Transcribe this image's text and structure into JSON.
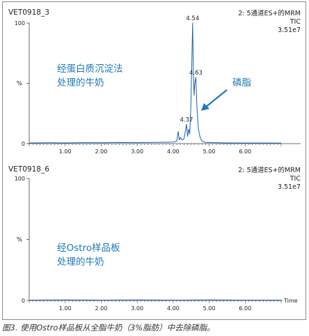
{
  "chart_data": [
    {
      "type": "line",
      "sample_id": "VET0918_3",
      "header_lines": [
        "2: 5通道ES+的MRM",
        "TIC",
        "3.51e7"
      ],
      "ylabel": "%",
      "ylim": [
        0,
        100
      ],
      "y_ticks": [
        0,
        100
      ],
      "xlim": [
        0.0,
        7.0
      ],
      "x_ticks": [
        "1.00",
        "2.00",
        "3.00",
        "4.00",
        "5.00",
        "6.00"
      ],
      "annotation_text": [
        "经蛋白质沉淀法",
        "处理的牛奶"
      ],
      "peak_callout": "磷脂",
      "peak_labels": [
        {
          "text": "4.54",
          "x": 4.54,
          "y": 100
        },
        {
          "text": "4.63",
          "x": 4.63,
          "y": 55
        },
        {
          "text": "4.37",
          "x": 4.37,
          "y": 16
        }
      ],
      "series": [
        {
          "color": "#1a5fb4",
          "x": [
            0.0,
            0.5,
            1.0,
            1.5,
            2.0,
            2.5,
            3.0,
            3.5,
            4.0,
            4.1,
            4.14,
            4.17,
            4.2,
            4.25,
            4.3,
            4.33,
            4.37,
            4.4,
            4.43,
            4.46,
            4.49,
            4.52,
            4.54,
            4.56,
            4.58,
            4.6,
            4.63,
            4.66,
            4.7,
            4.75,
            4.8,
            4.9,
            5.1,
            5.5,
            6.0,
            6.5,
            7.0
          ],
          "y": [
            0.5,
            0.7,
            0.6,
            0.8,
            0.7,
            0.9,
            0.8,
            1.0,
            1.2,
            2,
            10,
            3,
            5,
            3,
            4,
            9,
            16,
            6,
            12,
            8,
            30,
            70,
            100,
            60,
            40,
            50,
            55,
            30,
            12,
            5,
            2,
            1,
            0.8,
            0.6,
            0.5,
            0.5,
            0.4
          ]
        }
      ]
    },
    {
      "type": "line",
      "sample_id": "VET0918_6",
      "header_lines": [
        "2: 5通道ES+的MRM",
        "TIC",
        "3.51e7"
      ],
      "ylabel": "%",
      "ylim": [
        0,
        100
      ],
      "y_ticks": [
        0,
        100
      ],
      "xlim": [
        0.0,
        7.0
      ],
      "x_ticks": [
        "1.00",
        "2.00",
        "3.00",
        "4.00",
        "5.00",
        "6.00"
      ],
      "xlabel": "Time",
      "annotation_text": [
        "经Ostro样品板",
        "处理的牛奶"
      ],
      "series": [
        {
          "color": "#1a5fb4",
          "x": [
            0.0,
            1.0,
            2.0,
            3.0,
            4.0,
            5.0,
            6.0,
            7.0
          ],
          "y": [
            0.3,
            0.4,
            0.3,
            0.4,
            0.3,
            0.4,
            0.3,
            0.3
          ]
        }
      ]
    }
  ],
  "caption": "图3. 使用Ostro样品板从全脂牛奶（3%脂肪）中去除磷脂。"
}
